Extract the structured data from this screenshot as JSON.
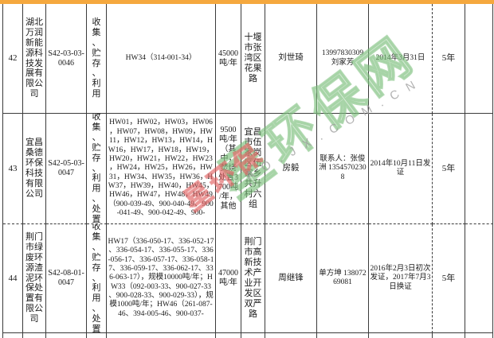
{
  "accent_color": "#F5A83E",
  "watermark": {
    "green_text": "星环保网",
    "red_text": "星环保",
    "gray_text": "AO.JX.COM.CN"
  },
  "rows": [
    {
      "num": "42",
      "company": "湖北万润新能源科技发展有限公司",
      "license_code": "S42-03-03-0046",
      "operations": "收集、贮存、利用",
      "hw_codes": "HW34（314-001-34）",
      "capacity": "45000吨/年",
      "address": "十堰市张湾区花果路",
      "contact": "刘世琦",
      "phone": "13997830309 刘家芳",
      "issue_date": "2014年3月31日",
      "validity": "5年",
      "note": ""
    },
    {
      "num": "43",
      "company": "宜昌桑德环保科技有限公司",
      "license_code": "S42-05-03-0047",
      "operations": "收集、贮存、利用、处置",
      "hw_codes": "HW01，HW02，HW03，HW06，HW07，HW08，HW09，HW11，HW12，HW13，HW14，HW16，HW17，HW18，HW19，HW20，HW21，HW22，HW23，HW24，HW25，HW26，HW31，HW34、HW35，HW36，HW37，HW39，HW40，HW45，HW46，HW47，HW48，HW49（900-039-49、900-040-49、900-041-49、900-042-49、900-",
      "capacity": "9500吨/年（其中，焚烧处置3700吨/年，其他",
      "address": "宜昌市伍家岗区伍家乡共升村六组",
      "contact": "房毅",
      "phone": "联系人：张俊洲 13545702308",
      "issue_date": "2014年10月11日发证",
      "validity": "5年",
      "note": ""
    },
    {
      "num": "44",
      "company": "荆门市绿废环源渣泥环保处置有限公司",
      "license_code": "S42-08-01-0047",
      "operations": "收集、贮存、利用、处置",
      "hw_codes": "HW17（336-050-17、336-052-17、336-054-17、336-055-17、336-056-17、336-057-17、336-058-17、336-059-17、336-062-17、336-063-17），规模10000吨/年；HW33（092-003-33、900-027-33、900-028-33、900-029-33），规模1000吨/年；HW46（261-087-46、394-005-46、900-037-",
      "capacity": "47000吨/年",
      "address": "荆门市高新技术产业开发区双严路",
      "contact": "周继锋",
      "phone": "单方坤 13807269081",
      "issue_date": "2016年2月3日初次发证，2017年7月3日换证",
      "validity": "5年",
      "note": ""
    }
  ]
}
